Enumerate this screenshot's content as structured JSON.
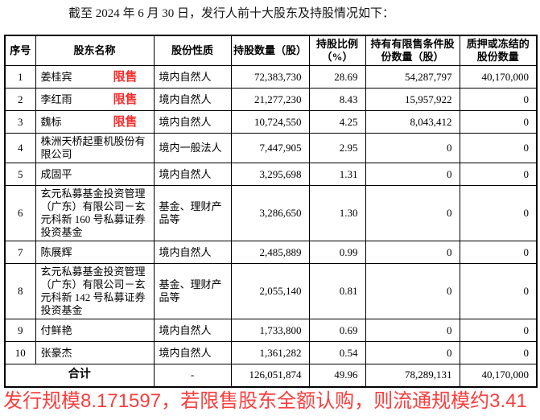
{
  "title": "截至 2024 年 6 月 30 日，发行人前十大股东及持股情况如下：",
  "colors": {
    "tag_red": "#f72d2d",
    "note_red": "#fa3e3e",
    "border_black": "#000000"
  },
  "table": {
    "headers": [
      "序号",
      "股东名称",
      "股份性质",
      "持股数量（股）",
      "持股比例（%）",
      "持有有限售条件股份数量（股）",
      "质押或冻结的股份数量"
    ],
    "rows": [
      {
        "no": "1",
        "name": "姜桂宾",
        "tag": "限售",
        "nature": "境内自然人",
        "shares": "72,383,730",
        "ratio": "28.69",
        "restricted": "54,287,797",
        "pledged": "40,170,000"
      },
      {
        "no": "2",
        "name": "李红雨",
        "tag": "限售",
        "nature": "境内自然人",
        "shares": "21,277,230",
        "ratio": "8.43",
        "restricted": "15,957,922",
        "pledged": "0"
      },
      {
        "no": "3",
        "name": "魏标",
        "tag": "限售",
        "nature": "境内自然人",
        "shares": "10,724,550",
        "ratio": "4.25",
        "restricted": "8,043,412",
        "pledged": "0"
      },
      {
        "no": "4",
        "name": "株洲天桥起重机股份有限公司",
        "tag": "",
        "nature": "境内一般法人",
        "shares": "7,447,905",
        "ratio": "2.95",
        "restricted": "0",
        "pledged": "0"
      },
      {
        "no": "5",
        "name": "成固平",
        "tag": "",
        "nature": "境内自然人",
        "shares": "3,295,698",
        "ratio": "1.31",
        "restricted": "0",
        "pledged": "0"
      },
      {
        "no": "6",
        "name": "玄元私募基金投资管理（广东）有限公司－玄元科新 160 号私募证券投资基金",
        "tag": "",
        "nature": "基金、理财产品等",
        "shares": "3,286,650",
        "ratio": "1.30",
        "restricted": "0",
        "pledged": "0"
      },
      {
        "no": "7",
        "name": "陈展辉",
        "tag": "",
        "nature": "境内自然人",
        "shares": "2,485,889",
        "ratio": "0.99",
        "restricted": "0",
        "pledged": "0"
      },
      {
        "no": "8",
        "name": "玄元私募基金投资管理（广东）有限公司－玄元科新 142 号私募证券投资基金",
        "tag": "",
        "nature": "基金、理财产品等",
        "shares": "2,055,140",
        "ratio": "0.81",
        "restricted": "0",
        "pledged": "0"
      },
      {
        "no": "9",
        "name": "付鲜艳",
        "tag": "",
        "nature": "境内自然人",
        "shares": "1,733,800",
        "ratio": "0.69",
        "restricted": "0",
        "pledged": "0"
      },
      {
        "no": "10",
        "name": "张豪杰",
        "tag": "",
        "nature": "境内自然人",
        "shares": "1,361,282",
        "ratio": "0.54",
        "restricted": "0",
        "pledged": "0"
      }
    ],
    "total": {
      "label": "合计",
      "nature": "-",
      "shares": "126,051,874",
      "ratio": "49.96",
      "restricted": "78,289,131",
      "pledged": "40,170,000"
    }
  },
  "footer_note": "发行规模8.171597，若限售股东全额认购，则流通规模约3.41"
}
